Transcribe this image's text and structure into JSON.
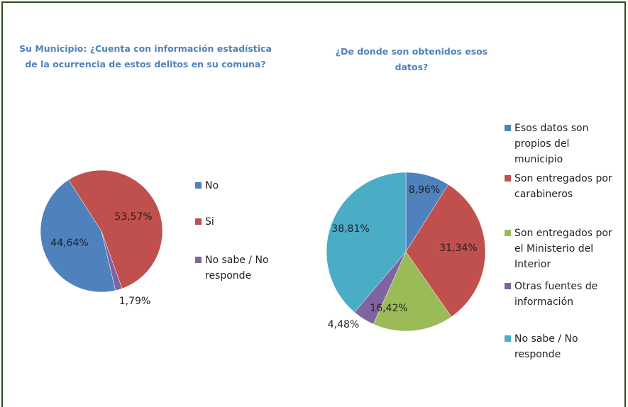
{
  "chart_data": [
    {
      "type": "pie",
      "title": "Su Municipio: ¿Cuenta con información estadística de la ocurrencia de estos delitos en su comuna?",
      "categories": [
        "No",
        "Si",
        "No sabe / No responde"
      ],
      "values": [
        44.64,
        53.57,
        1.79
      ],
      "value_labels": [
        "44,64%",
        "53,57%",
        "1,79%"
      ],
      "colors": [
        "#4f81bd",
        "#c0504d",
        "#8064a2"
      ]
    },
    {
      "type": "pie",
      "title": "¿De donde son obtenidos esos datos?",
      "categories": [
        "Esos datos son propios del municipio",
        "Son entregados por carabineros",
        "Son entregados por el Ministerio del Interior",
        "Otras fuentes de información",
        "No sabe / No responde"
      ],
      "values": [
        8.96,
        31.34,
        16.42,
        4.48,
        38.81
      ],
      "value_labels": [
        "8,96%",
        "31,34%",
        "16,42%",
        "4,48%",
        "38,81%"
      ],
      "colors": [
        "#4f81bd",
        "#c0504d",
        "#9bbb59",
        "#8064a2",
        "#4bacc6"
      ]
    }
  ]
}
